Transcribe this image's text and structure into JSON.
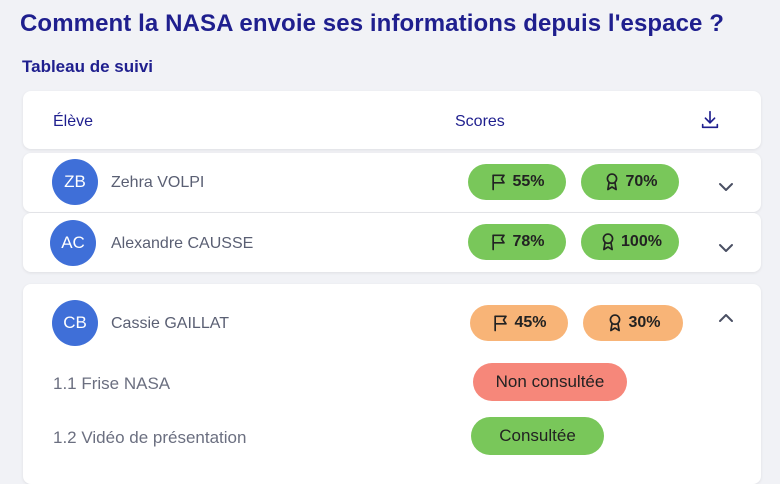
{
  "page": {
    "title": "Comment la NASA envoie ses informations depuis l'espace ?",
    "subtitle": "Tableau de suivi"
  },
  "table": {
    "columns": {
      "student": "Élève",
      "scores": "Scores"
    },
    "students": [
      {
        "initials": "ZB",
        "name": "Zehra VOLPI",
        "progress": "55%",
        "score": "70%",
        "expanded": false,
        "color": "green"
      },
      {
        "initials": "AC",
        "name": "Alexandre CAUSSE",
        "progress": "78%",
        "score": "100%",
        "expanded": false,
        "color": "green"
      },
      {
        "initials": "CB",
        "name": "Cassie GAILLAT",
        "progress": "45%",
        "score": "30%",
        "expanded": true,
        "color": "orange",
        "activities": [
          {
            "label": "1.1 Frise NASA",
            "status": "Non consultée"
          },
          {
            "label": "1.2 Vidéo de présentation",
            "status": "Consultée"
          }
        ]
      }
    ]
  },
  "colors": {
    "title": "#1f1f8e",
    "avatar": "#3f6fd8",
    "green": "#79c75a",
    "orange": "#f8b477",
    "red": "#f6877a"
  },
  "icons": {
    "download": "download-icon",
    "progress": "flag-icon",
    "score": "award-ribbon-icon",
    "collapsed": "chevron-down-icon",
    "expanded": "chevron-up-icon"
  }
}
